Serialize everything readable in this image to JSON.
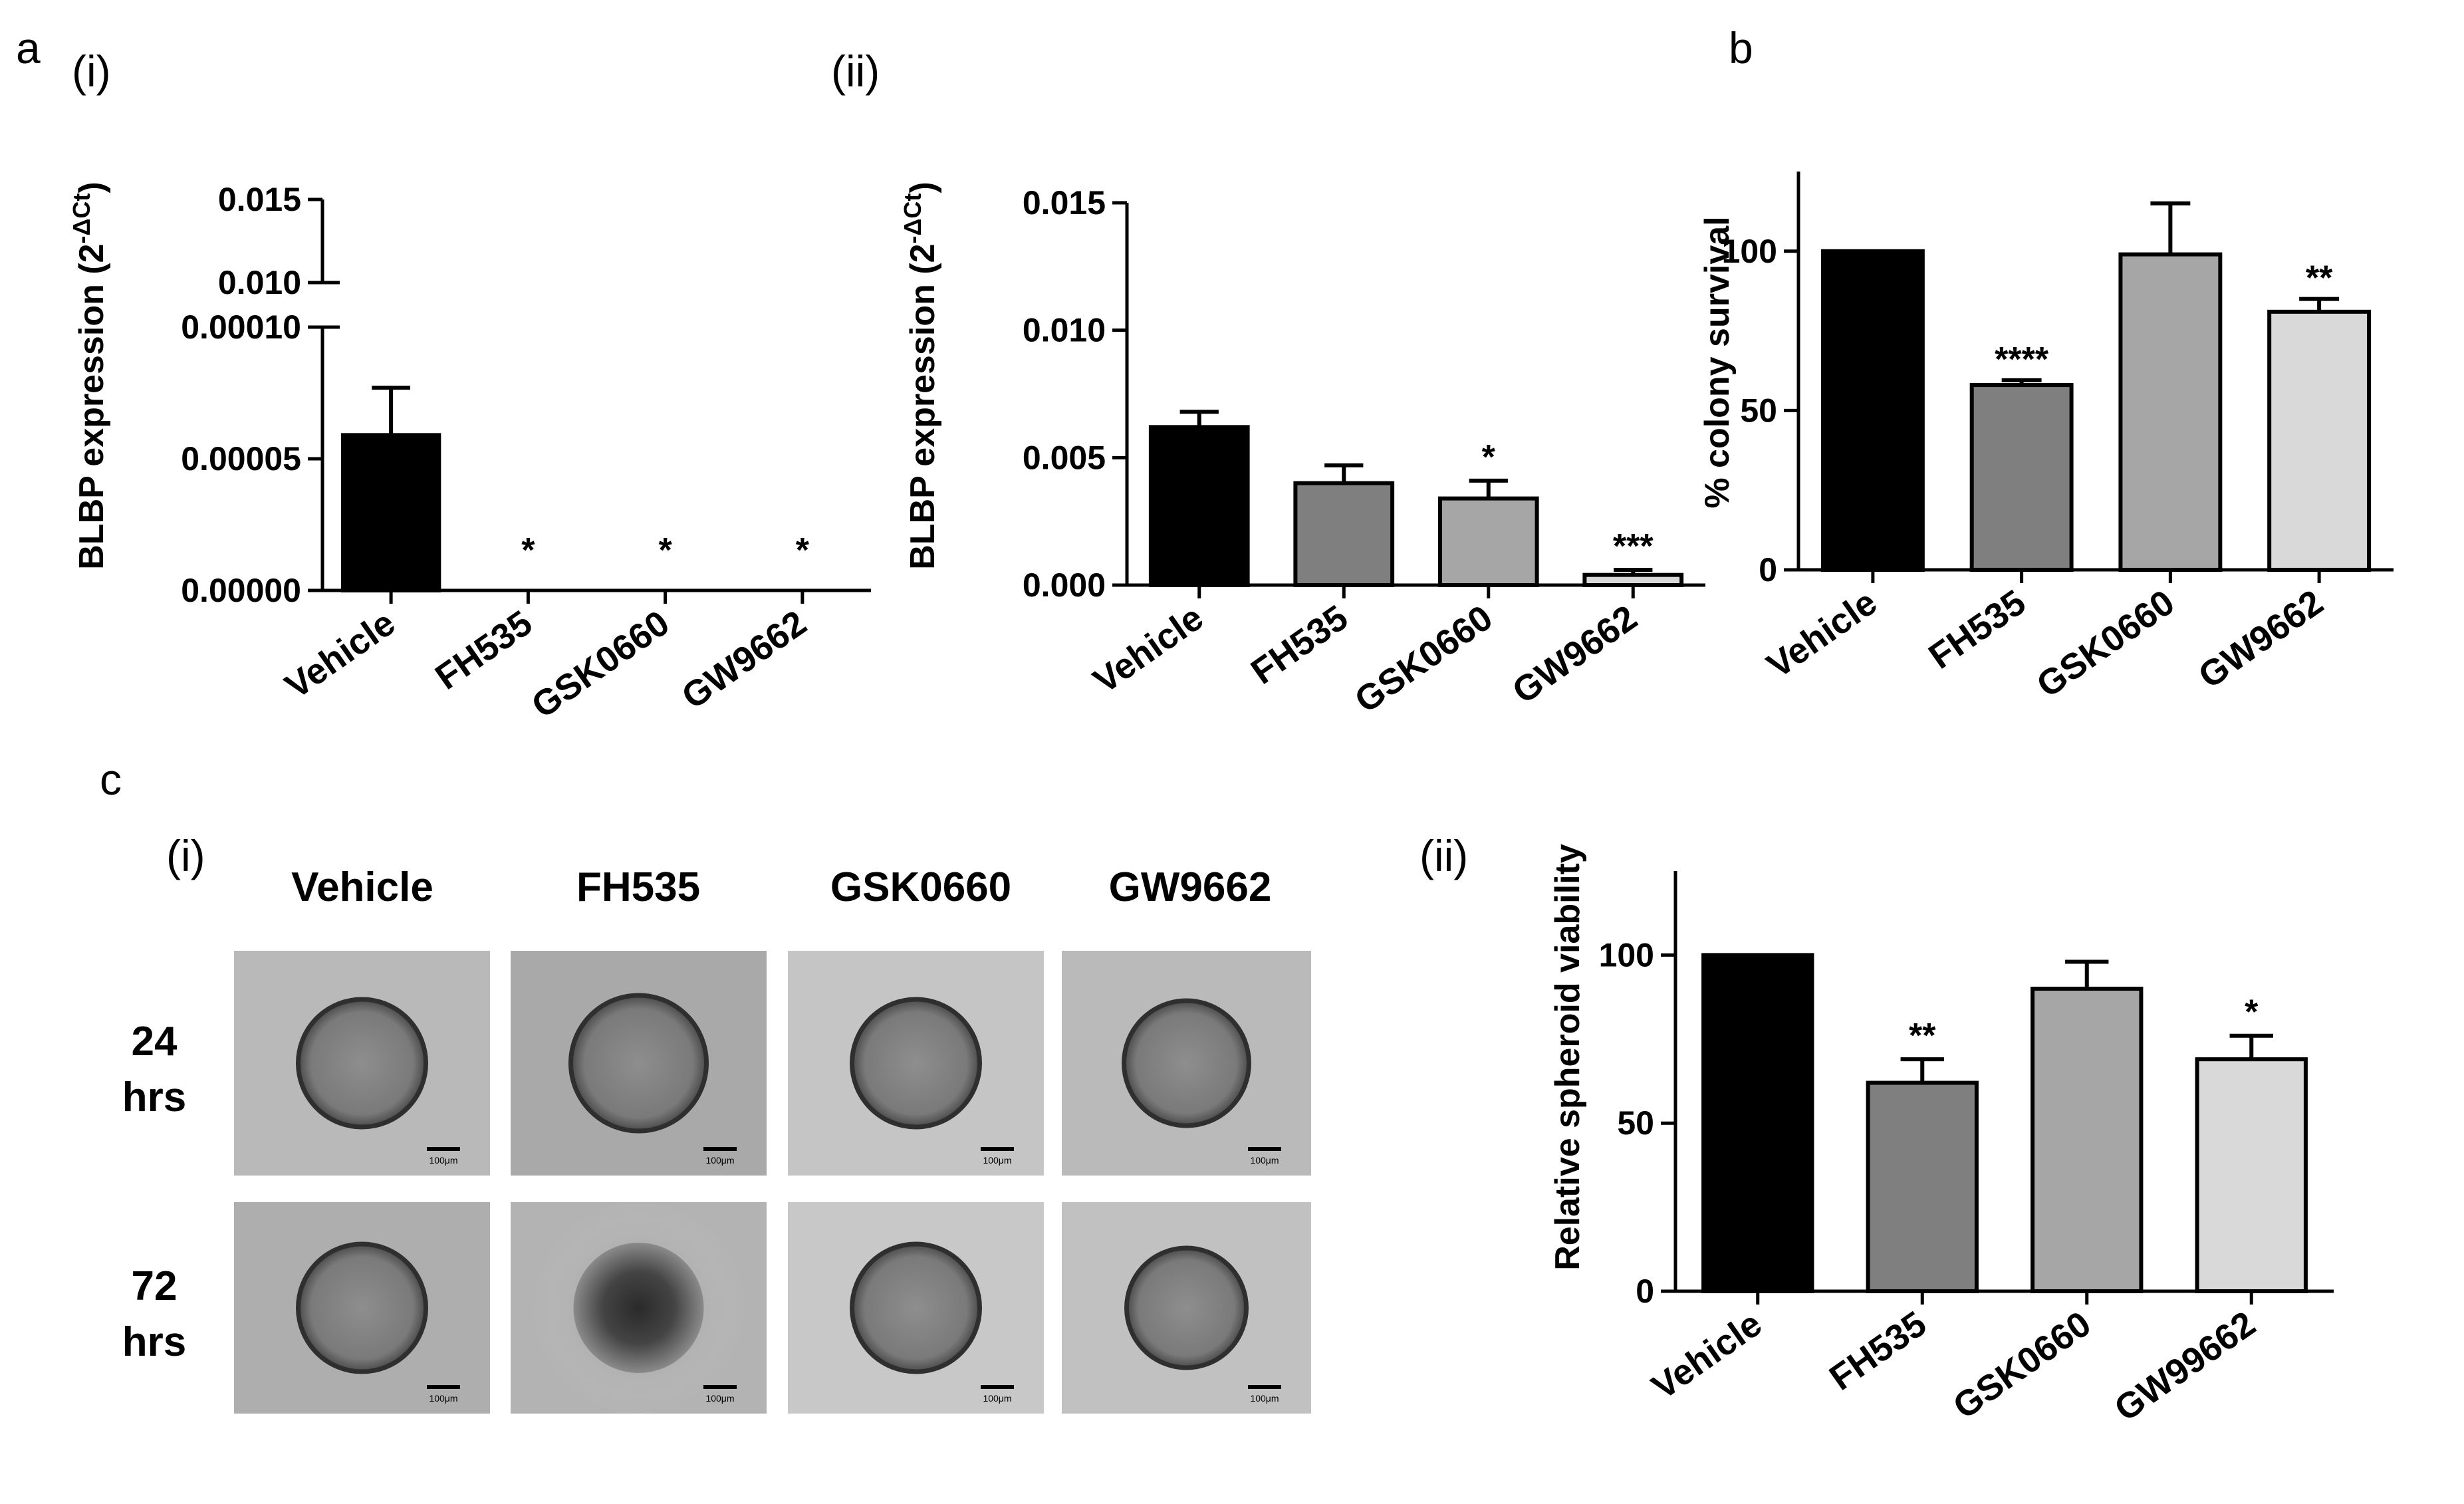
{
  "panels": {
    "a": "a",
    "a_i": "(i)",
    "a_ii": "(ii)",
    "b": "b",
    "c": "c",
    "c_i": "(i)",
    "c_ii": "(ii)"
  },
  "chart_data": [
    {
      "id": "a-i",
      "type": "bar",
      "ylabel": "BLBP expression (2^-ΔCt)",
      "ylabel_main": "BLBP expression (2",
      "ylabel_sup": "-ΔCt",
      "ylabel_close": ")",
      "broken_axis": true,
      "lower_ylim": [
        0,
        0.0001
      ],
      "lower_ticks": [
        "0.00000",
        "0.00005",
        "0.00010"
      ],
      "upper_ticks": [
        "0.010",
        "0.015"
      ],
      "categories": [
        "Vehicle",
        "FH535",
        "GSK0660",
        "GW9662"
      ],
      "values": [
        5.9e-05,
        0,
        0,
        0
      ],
      "errors": [
        1.8e-05,
        0,
        0,
        0
      ],
      "significance": [
        "",
        "*",
        "*",
        "*"
      ],
      "colors": [
        "#000000",
        "#7f7f7f",
        "#a6a6a6",
        "#d9d9d9"
      ]
    },
    {
      "id": "a-ii",
      "type": "bar",
      "ylabel": "BLBP expression (2^-ΔCt)",
      "ylabel_main": "BLBP expression (2",
      "ylabel_sup": "-ΔCt",
      "ylabel_close": ")",
      "ylim": [
        0,
        0.015
      ],
      "ticks": [
        "0.000",
        "0.005",
        "0.010",
        "0.015"
      ],
      "categories": [
        "Vehicle",
        "FH535",
        "GSK0660",
        "GW9662"
      ],
      "values": [
        0.0062,
        0.004,
        0.0034,
        0.0004
      ],
      "errors": [
        0.0006,
        0.0007,
        0.0007,
        0.0002
      ],
      "significance": [
        "",
        "",
        "*",
        "***"
      ],
      "colors": [
        "#000000",
        "#7f7f7f",
        "#a6a6a6",
        "#d9d9d9"
      ]
    },
    {
      "id": "b",
      "type": "bar",
      "ylabel": "% colony survival",
      "ylim": [
        0,
        125
      ],
      "ticks": [
        "0",
        "50",
        "100"
      ],
      "categories": [
        "Vehicle",
        "FH535",
        "GSK0660",
        "GW9662"
      ],
      "values": [
        100,
        58,
        99,
        81
      ],
      "errors": [
        0,
        1.5,
        16,
        4
      ],
      "significance": [
        "",
        "****",
        "",
        "**"
      ],
      "colors": [
        "#000000",
        "#7f7f7f",
        "#a6a6a6",
        "#d9d9d9"
      ]
    },
    {
      "id": "c-ii",
      "type": "bar",
      "ylabel": "Relative spheroid viability",
      "ylim": [
        0,
        125
      ],
      "ticks": [
        "0",
        "50",
        "100"
      ],
      "categories": [
        "Vehicle",
        "FH535",
        "GSK0660",
        "GW99662"
      ],
      "values": [
        100,
        62,
        90,
        69
      ],
      "errors": [
        0,
        7,
        8,
        7
      ],
      "significance": [
        "",
        "**",
        "",
        "*"
      ],
      "colors": [
        "#000000",
        "#7f7f7f",
        "#a6a6a6",
        "#d9d9d9"
      ]
    }
  ],
  "micrographs": {
    "columns": [
      "Vehicle",
      "FH535",
      "GSK0660",
      "GW9662"
    ],
    "rows": [
      {
        "line1": "24",
        "line2": "hrs"
      },
      {
        "line1": "72",
        "line2": "hrs"
      }
    ],
    "scale_bar": "100μm"
  }
}
